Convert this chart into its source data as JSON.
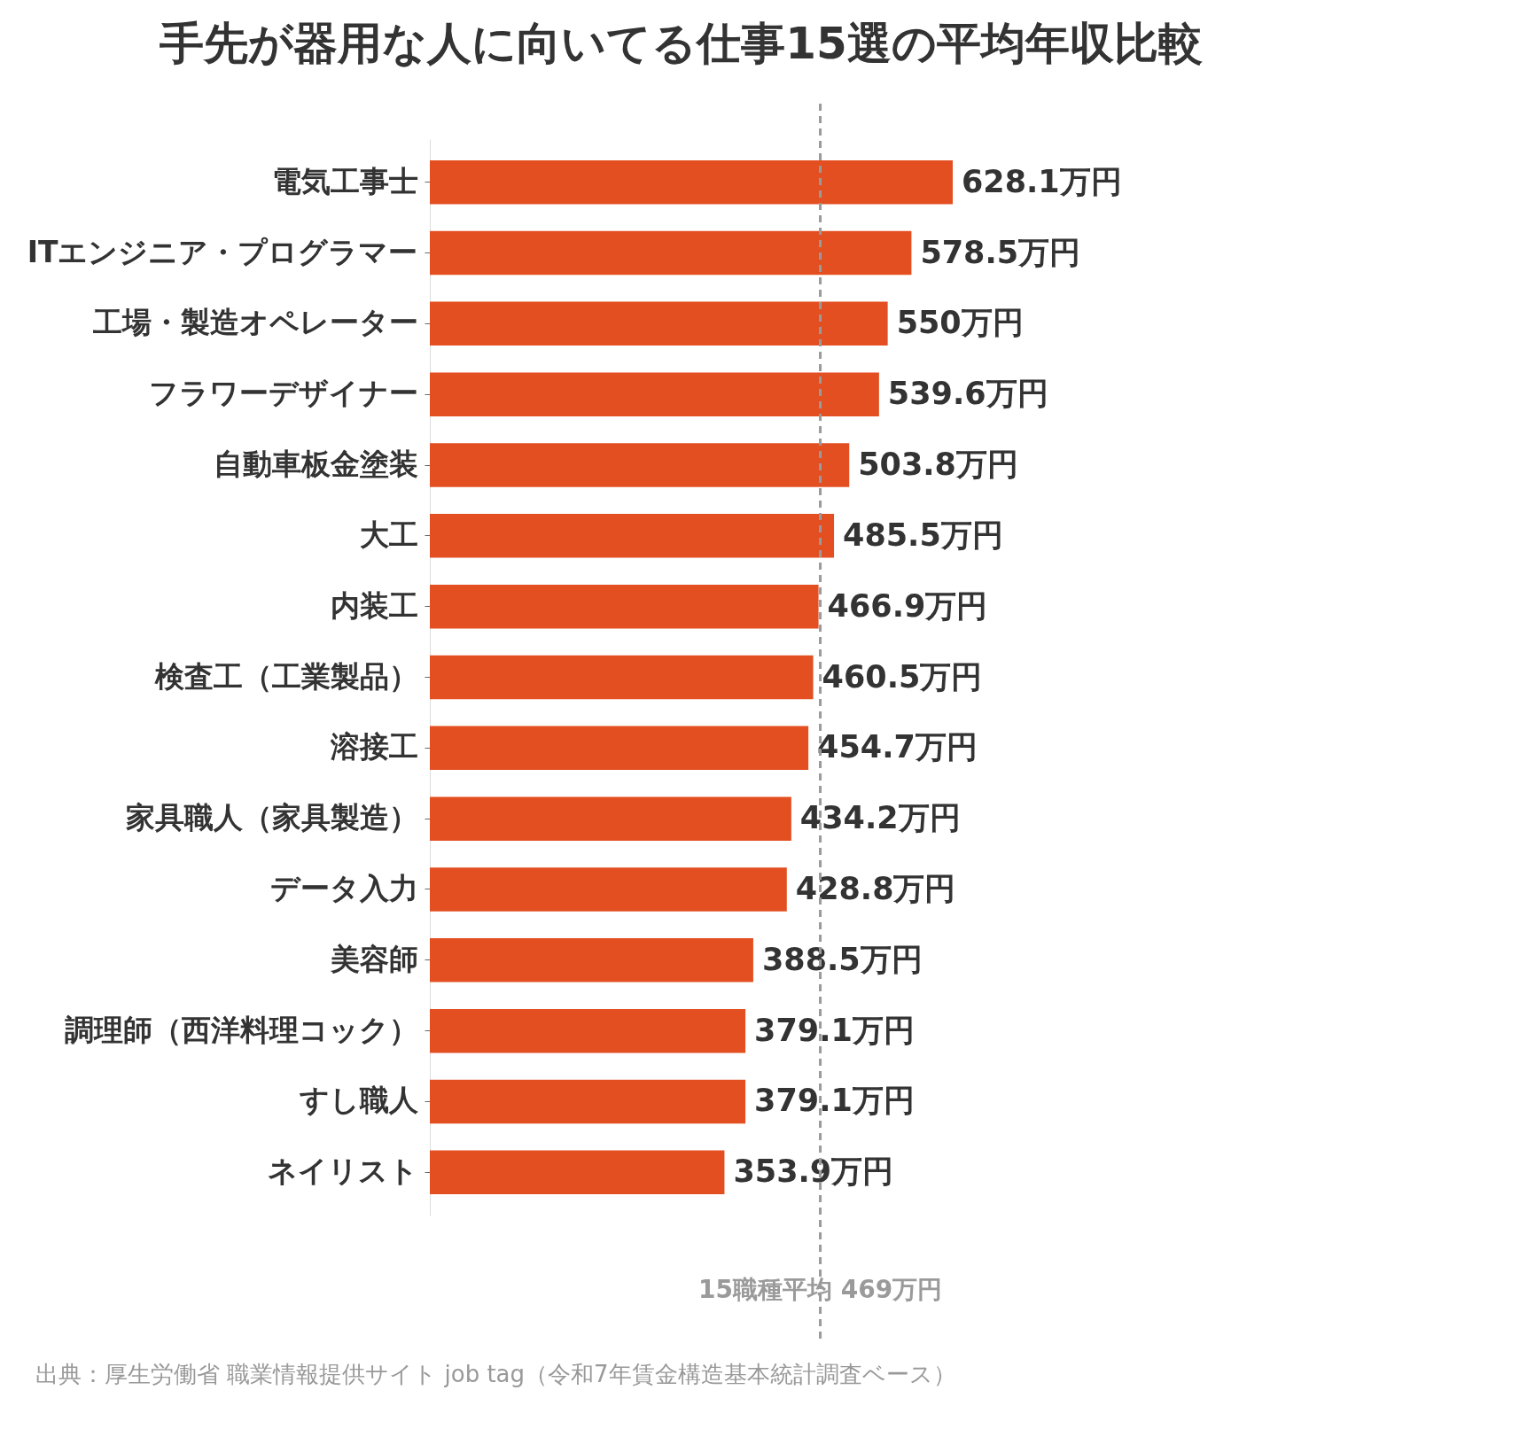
{
  "chart_data": {
    "type": "bar",
    "orientation": "horizontal",
    "title": "手先が器用な人に向いてる仕事15選の平均年収比較",
    "categories": [
      "電気工事士",
      "ITエンジニア・プログラマー",
      "工場・製造オペレーター",
      "フラワーデザイナー",
      "自動車板金塗装",
      "大工",
      "内装工",
      "検査工（工業製品）",
      "溶接工",
      "家具職人（家具製造）",
      "データ入力",
      "美容師",
      "調理師（西洋料理コック）",
      "すし職人",
      "ネイリスト"
    ],
    "values": [
      628.1,
      578.5,
      550,
      539.6,
      503.8,
      485.5,
      466.9,
      460.5,
      454.7,
      434.2,
      428.8,
      388.5,
      379.1,
      379.1,
      353.9
    ],
    "value_labels": [
      "628.1万円",
      "578.5万円",
      "550万円",
      "539.6万円",
      "503.8万円",
      "485.5万円",
      "466.9万円",
      "460.5万円",
      "454.7万円",
      "434.2万円",
      "428.8万円",
      "388.5万円",
      "379.1万円",
      "379.1万円",
      "353.9万円"
    ],
    "color": "#e34f21",
    "tick_labels": "y",
    "ref_lines": [
      {
        "axis": "x",
        "value": 469,
        "label": "15職種平均 469万円",
        "color": "#9a9a9a",
        "line_style": "dashed"
      }
    ],
    "annotations": [
      "出典：厚生労働省 職業情報提供サイト job tag（令和7年賃金構造基本統計調査ベース）"
    ]
  }
}
